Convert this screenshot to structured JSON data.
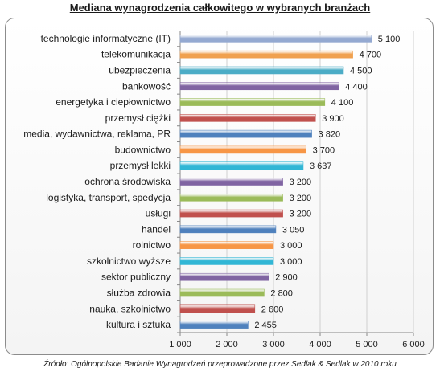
{
  "chart_data": {
    "type": "bar",
    "orientation": "horizontal",
    "title": "Mediana wynagrodzenia całkowitego w wybranych branżach",
    "source": "Źródło: Ogólnopolskie Badanie Wynagrodzeń przeprowadzone przez Sedlak & Sedlak w 2010 roku",
    "categories": [
      "technologie informatyczne (IT)",
      "telekomunikacja",
      "ubezpieczenia",
      "bankowość",
      "energetyka i ciepłownictwo",
      "przemysł ciężki",
      "media, wydawnictwa, reklama, PR",
      "budownictwo",
      "przemysł lekki",
      "ochrona środowiska",
      "logistyka, transport, spedycja",
      "usługi",
      "handel",
      "rolnictwo",
      "szkolnictwo wyższe",
      "sektor publiczny",
      "służba zdrowia",
      "nauka, szkolnictwo",
      "kultura i sztuka"
    ],
    "values": [
      5100,
      4700,
      4500,
      4400,
      4100,
      3900,
      3820,
      3700,
      3637,
      3200,
      3200,
      3200,
      3050,
      3000,
      3000,
      2900,
      2800,
      2600,
      2455
    ],
    "value_labels": [
      "5 100",
      "4 700",
      "4 500",
      "4 400",
      "4 100",
      "3 900",
      "3 820",
      "3 700",
      "3 637",
      "3 200",
      "3 200",
      "3 200",
      "3 050",
      "3 000",
      "3 000",
      "2 900",
      "2 800",
      "2 600",
      "2 455"
    ],
    "bar_colors": [
      "#94a9d1",
      "#f0a14f",
      "#4bacc6",
      "#8064a2",
      "#9bbb59",
      "#c0504d",
      "#4f81bd",
      "#f79646",
      "#31b6d5",
      "#8064a2",
      "#9bbb59",
      "#c0504d",
      "#4f81bd",
      "#f79646",
      "#31b6d5",
      "#8064a2",
      "#9bbb59",
      "#c0504d",
      "#4f81bd"
    ],
    "xlim": [
      1000,
      6000
    ],
    "xticks": [
      1000,
      2000,
      3000,
      4000,
      5000,
      6000
    ],
    "xtick_labels": [
      "1 000",
      "2 000",
      "3 000",
      "4 000",
      "5 000",
      "6 000"
    ],
    "grid": true,
    "legend": "none"
  }
}
